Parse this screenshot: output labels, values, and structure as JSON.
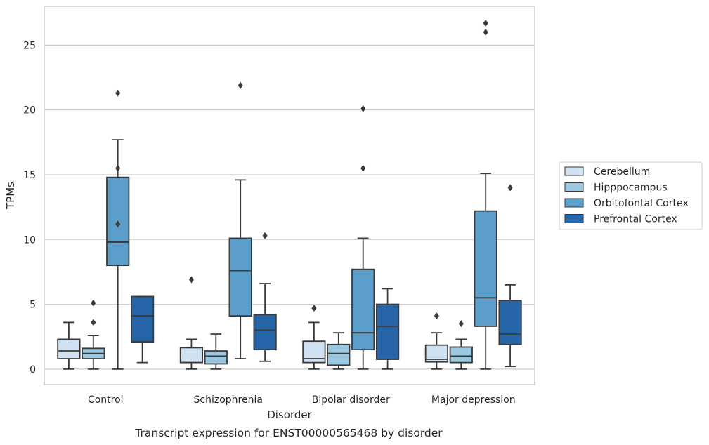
{
  "chart_data": {
    "type": "box",
    "title": "",
    "caption": "Transcript expression for ENST00000565468 by disorder",
    "xlabel": "Disorder",
    "ylabel": "TPMs",
    "ylim": [
      -1.2,
      28
    ],
    "yticks": [
      0,
      5,
      10,
      15,
      20,
      25
    ],
    "grid": "horizontal",
    "legend_position": "right",
    "categories": [
      "Control",
      "Schizophrenia",
      "Bipolar disorder",
      "Major depression"
    ],
    "series": [
      {
        "name": "Cerebellum",
        "color": "#d0e1f2",
        "boxes": [
          {
            "whisker_low": 0.0,
            "q1": 0.8,
            "median": 1.4,
            "q3": 2.3,
            "whisker_high": 3.6,
            "outliers": []
          },
          {
            "whisker_low": 0.0,
            "q1": 0.5,
            "median": 0.5,
            "q3": 1.65,
            "whisker_high": 2.3,
            "outliers": [
              6.9
            ]
          },
          {
            "whisker_low": 0.0,
            "q1": 0.5,
            "median": 0.8,
            "q3": 2.15,
            "whisker_high": 3.6,
            "outliers": [
              4.7
            ]
          },
          {
            "whisker_low": 0.0,
            "q1": 0.55,
            "median": 0.75,
            "q3": 1.85,
            "whisker_high": 2.8,
            "outliers": [
              4.1
            ]
          }
        ]
      },
      {
        "name": "Hipppocampus",
        "color": "#9ac8e0",
        "boxes": [
          {
            "whisker_low": 0.0,
            "q1": 0.8,
            "median": 1.2,
            "q3": 1.6,
            "whisker_high": 2.6,
            "outliers": [
              3.6,
              5.1
            ]
          },
          {
            "whisker_low": 0.0,
            "q1": 0.4,
            "median": 1.0,
            "q3": 1.4,
            "whisker_high": 2.7,
            "outliers": []
          },
          {
            "whisker_low": 0.0,
            "q1": 0.3,
            "median": 1.2,
            "q3": 1.9,
            "whisker_high": 2.8,
            "outliers": []
          },
          {
            "whisker_low": 0.0,
            "q1": 0.5,
            "median": 1.0,
            "q3": 1.7,
            "whisker_high": 2.3,
            "outliers": [
              3.5
            ]
          }
        ]
      },
      {
        "name": "Orbitofontal Cortex",
        "color": "#5a9ec9",
        "boxes": [
          {
            "whisker_low": 0.0,
            "q1": 8.0,
            "median": 9.8,
            "q3": 14.8,
            "whisker_high": 17.7,
            "outliers": [
              11.2,
              15.5,
              21.3
            ]
          },
          {
            "whisker_low": 0.8,
            "q1": 4.1,
            "median": 7.6,
            "q3": 10.1,
            "whisker_high": 14.6,
            "outliers": [
              21.9
            ]
          },
          {
            "whisker_low": 0.0,
            "q1": 1.5,
            "median": 2.8,
            "q3": 7.7,
            "whisker_high": 10.1,
            "outliers": [
              15.5,
              20.1
            ]
          },
          {
            "whisker_low": 0.0,
            "q1": 3.3,
            "median": 5.5,
            "q3": 12.2,
            "whisker_high": 15.1,
            "outliers": [
              26.0,
              26.7
            ]
          }
        ]
      },
      {
        "name": "Prefrontal Cortex",
        "color": "#2565a8",
        "boxes": [
          {
            "whisker_low": 0.5,
            "q1": 2.1,
            "median": 4.1,
            "q3": 5.6,
            "whisker_high": 5.6,
            "outliers": []
          },
          {
            "whisker_low": 0.6,
            "q1": 1.5,
            "median": 3.0,
            "q3": 4.2,
            "whisker_high": 6.6,
            "outliers": [
              10.3
            ]
          },
          {
            "whisker_low": 0.0,
            "q1": 0.75,
            "median": 3.3,
            "q3": 5.0,
            "whisker_high": 6.2,
            "outliers": []
          },
          {
            "whisker_low": 0.2,
            "q1": 1.9,
            "median": 2.7,
            "q3": 5.3,
            "whisker_high": 6.5,
            "outliers": [
              14.0
            ]
          }
        ]
      }
    ]
  }
}
